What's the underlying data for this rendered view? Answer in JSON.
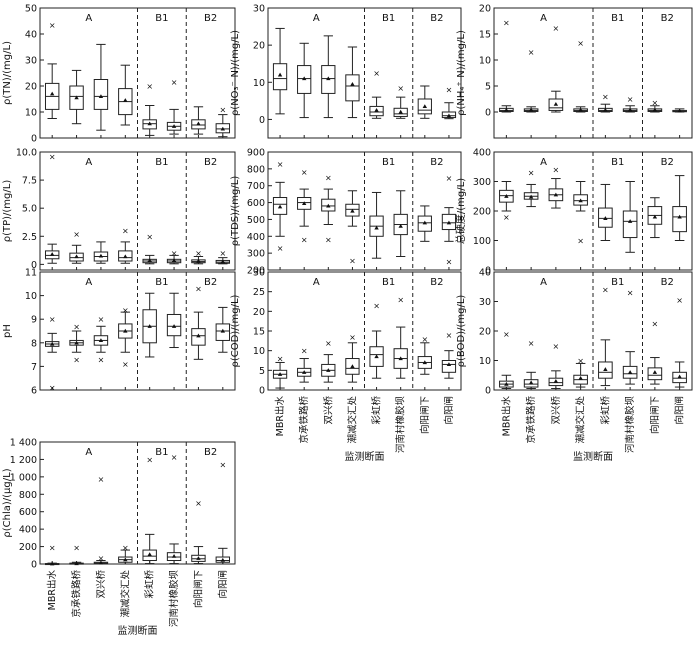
{
  "chart_data": [
    {
      "id": "tn",
      "type": "box",
      "ylabel": "ρ(TN)/(mg/L)",
      "ylim": [
        0,
        50
      ],
      "yticks": [
        0,
        10,
        20,
        30,
        40,
        50
      ],
      "group_labels": [
        "A",
        "B1",
        "B2"
      ],
      "boxes": [
        {
          "min": 7.5,
          "q1": 11,
          "median": 16,
          "q3": 21,
          "max": 28.5,
          "mean": 17,
          "outliers": [
            43.5
          ]
        },
        {
          "min": 5.5,
          "q1": 11,
          "median": 16,
          "q3": 20,
          "max": 26,
          "mean": 15.5,
          "outliers": []
        },
        {
          "min": 3,
          "q1": 11,
          "median": 16,
          "q3": 22.5,
          "max": 36,
          "mean": 16,
          "outliers": []
        },
        {
          "min": 5,
          "q1": 9,
          "median": 14,
          "q3": 19,
          "max": 28,
          "mean": 14.5,
          "outliers": []
        },
        {
          "min": 1,
          "q1": 3.5,
          "median": 5.5,
          "q3": 7,
          "max": 12.5,
          "mean": 5.5,
          "outliers": [
            20
          ]
        },
        {
          "min": 1.5,
          "q1": 3,
          "median": 4.5,
          "q3": 6,
          "max": 11,
          "mean": 4.5,
          "outliers": [
            21.5
          ]
        },
        {
          "min": 1.5,
          "q1": 3.5,
          "median": 5,
          "q3": 7,
          "max": 12,
          "mean": 5.5,
          "outliers": []
        },
        {
          "min": 0.5,
          "q1": 2,
          "median": 3.5,
          "q3": 5.5,
          "max": 9,
          "mean": 3.5,
          "outliers": [
            11
          ]
        }
      ]
    },
    {
      "id": "no3",
      "type": "box",
      "ylabel": "ρ(NO₃⁻-N)/(mg/L)",
      "ylim": [
        -5,
        30
      ],
      "yticks": [
        0,
        10,
        20,
        30
      ],
      "group_labels": [
        "A",
        "B1",
        "B2"
      ],
      "boxes": [
        {
          "min": 1.5,
          "q1": 8,
          "median": 11,
          "q3": 15,
          "max": 24.5,
          "mean": 12,
          "outliers": []
        },
        {
          "min": 0.5,
          "q1": 7,
          "median": 11,
          "q3": 14.5,
          "max": 20.5,
          "mean": 11,
          "outliers": []
        },
        {
          "min": 0.5,
          "q1": 7,
          "median": 11,
          "q3": 14.5,
          "max": 22.5,
          "mean": 11,
          "outliers": []
        },
        {
          "min": 0.5,
          "q1": 5,
          "median": 9,
          "q3": 12,
          "max": 19.5,
          "mean": 9.5,
          "outliers": []
        },
        {
          "min": 0.3,
          "q1": 1,
          "median": 2,
          "q3": 3.5,
          "max": 6,
          "mean": 2.5,
          "outliers": [
            12.5
          ]
        },
        {
          "min": 0.3,
          "q1": 0.8,
          "median": 1.5,
          "q3": 3,
          "max": 6,
          "mean": 2,
          "outliers": [
            8.5
          ]
        },
        {
          "min": 0.3,
          "q1": 1.5,
          "median": 2.5,
          "q3": 5.5,
          "max": 9,
          "mean": 3.5,
          "outliers": []
        },
        {
          "min": 0.2,
          "q1": 0.5,
          "median": 1,
          "q3": 2,
          "max": 4.5,
          "mean": 1,
          "outliers": [
            8
          ]
        }
      ]
    },
    {
      "id": "nh4",
      "type": "box",
      "ylabel": "ρ(NH₄⁺-N)/(mg/L)",
      "ylim": [
        -5,
        20
      ],
      "yticks": [
        0,
        5,
        10,
        15,
        20
      ],
      "group_labels": [
        "A",
        "B1",
        "B2"
      ],
      "boxes": [
        {
          "min": 0,
          "q1": 0.1,
          "median": 0.3,
          "q3": 0.7,
          "max": 1.2,
          "mean": 0.4,
          "outliers": [
            17.2
          ]
        },
        {
          "min": 0,
          "q1": 0.1,
          "median": 0.3,
          "q3": 0.6,
          "max": 1,
          "mean": 0.4,
          "outliers": [
            11.5
          ]
        },
        {
          "min": 0,
          "q1": 0.3,
          "median": 0.8,
          "q3": 2.5,
          "max": 4,
          "mean": 1.5,
          "outliers": [
            16.2
          ]
        },
        {
          "min": 0,
          "q1": 0.1,
          "median": 0.3,
          "q3": 0.6,
          "max": 1,
          "mean": 0.4,
          "outliers": [
            13.3
          ]
        },
        {
          "min": 0,
          "q1": 0.1,
          "median": 0.3,
          "q3": 0.7,
          "max": 1.5,
          "mean": 0.4,
          "outliers": [
            3
          ]
        },
        {
          "min": 0,
          "q1": 0.1,
          "median": 0.3,
          "q3": 0.6,
          "max": 1.2,
          "mean": 0.4,
          "outliers": [
            2.5
          ]
        },
        {
          "min": 0,
          "q1": 0.1,
          "median": 0.3,
          "q3": 0.6,
          "max": 1.2,
          "mean": 0.4,
          "outliers": [
            1.8
          ]
        },
        {
          "min": 0,
          "q1": 0.05,
          "median": 0.1,
          "q3": 0.3,
          "max": 0.6,
          "mean": 0.2,
          "outliers": []
        }
      ]
    },
    {
      "id": "tp",
      "type": "box",
      "ylabel": "ρ(TP)/(mg/L)",
      "ylim": [
        -0.5,
        10
      ],
      "yticks": [
        0,
        2.5,
        5.0,
        7.5,
        10.0
      ],
      "ytick_labels": [
        "0",
        "2.5",
        "5.0",
        "7.5",
        "10.0"
      ],
      "group_labels": [
        "A",
        "B1",
        "B2"
      ],
      "boxes": [
        {
          "min": 0.1,
          "q1": 0.5,
          "median": 0.8,
          "q3": 1.2,
          "max": 1.8,
          "mean": 0.9,
          "outliers": [
            9.6
          ]
        },
        {
          "min": 0.1,
          "q1": 0.3,
          "median": 0.6,
          "q3": 1.0,
          "max": 1.7,
          "mean": 0.7,
          "outliers": [
            2.7
          ]
        },
        {
          "min": 0.1,
          "q1": 0.3,
          "median": 0.7,
          "q3": 1.1,
          "max": 2,
          "mean": 0.75,
          "outliers": []
        },
        {
          "min": 0.1,
          "q1": 0.3,
          "median": 0.6,
          "q3": 1.2,
          "max": 2,
          "mean": 0.7,
          "outliers": [
            3
          ]
        },
        {
          "min": 0.05,
          "q1": 0.15,
          "median": 0.3,
          "q3": 0.45,
          "max": 0.8,
          "mean": 0.35,
          "outliers": [
            2.5
          ]
        },
        {
          "min": 0.05,
          "q1": 0.15,
          "median": 0.3,
          "q3": 0.45,
          "max": 0.8,
          "mean": 0.35,
          "outliers": [
            1
          ]
        },
        {
          "min": 0.05,
          "q1": 0.15,
          "median": 0.25,
          "q3": 0.4,
          "max": 0.7,
          "mean": 0.3,
          "outliers": [
            1
          ]
        },
        {
          "min": 0.05,
          "q1": 0.1,
          "median": 0.2,
          "q3": 0.35,
          "max": 0.6,
          "mean": 0.25,
          "outliers": [
            1
          ]
        }
      ]
    },
    {
      "id": "tds",
      "type": "box",
      "ylabel": "ρ(TDS)/(mg/L)",
      "ylim": [
        200,
        900
      ],
      "yticks": [
        200,
        300,
        400,
        500,
        600,
        700,
        800,
        900
      ],
      "group_labels": [
        "B1",
        "B2"
      ],
      "boxes": [
        {
          "min": 400,
          "q1": 530,
          "median": 590,
          "q3": 630,
          "max": 720,
          "mean": 575,
          "outliers": [
            830,
            330
          ]
        },
        {
          "min": 460,
          "q1": 560,
          "median": 600,
          "q3": 630,
          "max": 680,
          "mean": 595,
          "outliers": [
            780,
            380
          ]
        },
        {
          "min": 470,
          "q1": 550,
          "median": 580,
          "q3": 620,
          "max": 680,
          "mean": 580,
          "outliers": [
            750,
            380
          ]
        },
        {
          "min": 460,
          "q1": 520,
          "median": 560,
          "q3": 590,
          "max": 670,
          "mean": 550,
          "outliers": [
            255
          ]
        },
        {
          "min": 270,
          "q1": 400,
          "median": 460,
          "q3": 520,
          "max": 660,
          "mean": 450,
          "outliers": []
        },
        {
          "min": 280,
          "q1": 410,
          "median": 470,
          "q3": 530,
          "max": 670,
          "mean": 460,
          "outliers": []
        },
        {
          "min": 370,
          "q1": 430,
          "median": 480,
          "q3": 520,
          "max": 580,
          "mean": 480,
          "outliers": []
        },
        {
          "min": 370,
          "q1": 440,
          "median": 480,
          "q3": 530,
          "max": 570,
          "mean": 480,
          "outliers": [
            745,
            250
          ]
        }
      ]
    },
    {
      "id": "hardness",
      "type": "box",
      "ylabel": "总硬度/(mg/L)",
      "ylim": [
        0,
        400
      ],
      "yticks": [
        0,
        100,
        200,
        300,
        400
      ],
      "group_labels": [
        "A",
        "B1",
        "B2"
      ],
      "boxes": [
        {
          "min": 200,
          "q1": 230,
          "median": 252,
          "q3": 270,
          "max": 300,
          "mean": 250,
          "outliers": [
            180
          ]
        },
        {
          "min": 215,
          "q1": 240,
          "median": 250,
          "q3": 262,
          "max": 290,
          "mean": 248,
          "outliers": [
            330
          ]
        },
        {
          "min": 210,
          "q1": 235,
          "median": 255,
          "q3": 275,
          "max": 310,
          "mean": 255,
          "outliers": [
            340
          ]
        },
        {
          "min": 200,
          "q1": 220,
          "median": 235,
          "q3": 255,
          "max": 300,
          "mean": 235,
          "outliers": [
            100
          ]
        },
        {
          "min": 100,
          "q1": 145,
          "median": 175,
          "q3": 210,
          "max": 290,
          "mean": 175,
          "outliers": []
        },
        {
          "min": 60,
          "q1": 110,
          "median": 165,
          "q3": 200,
          "max": 300,
          "mean": 165,
          "outliers": []
        },
        {
          "min": 110,
          "q1": 155,
          "median": 185,
          "q3": 215,
          "max": 245,
          "mean": 180,
          "outliers": []
        },
        {
          "min": 100,
          "q1": 130,
          "median": 180,
          "q3": 215,
          "max": 320,
          "mean": 180,
          "outliers": []
        }
      ]
    },
    {
      "id": "ph",
      "type": "box",
      "ylabel": "pH",
      "ylim": [
        6,
        11
      ],
      "yticks": [
        6,
        7,
        8,
        9,
        10,
        11
      ],
      "group_labels": [
        "A",
        "B1",
        "B2"
      ],
      "boxes": [
        {
          "min": 7.6,
          "q1": 7.85,
          "median": 7.95,
          "q3": 8.05,
          "max": 8.4,
          "mean": 7.95,
          "outliers": [
            9.0,
            6.1
          ]
        },
        {
          "min": 7.6,
          "q1": 7.9,
          "median": 8.0,
          "q3": 8.1,
          "max": 8.5,
          "mean": 8.0,
          "outliers": [
            8.7,
            7.3
          ]
        },
        {
          "min": 7.6,
          "q1": 7.9,
          "median": 8.1,
          "q3": 8.3,
          "max": 8.7,
          "mean": 8.1,
          "outliers": [
            9.0,
            7.3
          ]
        },
        {
          "min": 7.6,
          "q1": 8.2,
          "median": 8.5,
          "q3": 8.8,
          "max": 9.3,
          "mean": 8.5,
          "outliers": [
            9.4,
            7.1
          ]
        },
        {
          "min": 7.4,
          "q1": 8.0,
          "median": 8.7,
          "q3": 9.4,
          "max": 10.1,
          "mean": 8.7,
          "outliers": []
        },
        {
          "min": 7.8,
          "q1": 8.3,
          "median": 8.7,
          "q3": 9.2,
          "max": 10.1,
          "mean": 8.7,
          "outliers": []
        },
        {
          "min": 7.3,
          "q1": 7.9,
          "median": 8.3,
          "q3": 8.6,
          "max": 9.3,
          "mean": 8.3,
          "outliers": [
            10.3
          ]
        },
        {
          "min": 7.6,
          "q1": 8.1,
          "median": 8.5,
          "q3": 8.8,
          "max": 9.5,
          "mean": 8.5,
          "outliers": []
        }
      ]
    },
    {
      "id": "cod",
      "type": "box",
      "ylabel": "ρ(COD)/(mg/L)",
      "ylim": [
        0,
        30
      ],
      "yticks": [
        0,
        5,
        10,
        15,
        20,
        25,
        30
      ],
      "group_labels": [
        "A",
        "B1",
        "B2"
      ],
      "boxes": [
        {
          "min": 0.5,
          "q1": 3,
          "median": 4,
          "q3": 5,
          "max": 7,
          "mean": 4,
          "outliers": [
            8
          ]
        },
        {
          "min": 2,
          "q1": 3.5,
          "median": 4.5,
          "q3": 5.5,
          "max": 8,
          "mean": 4.5,
          "outliers": [
            10
          ]
        },
        {
          "min": 2,
          "q1": 3.5,
          "median": 5,
          "q3": 6.5,
          "max": 9,
          "mean": 5,
          "outliers": [
            12
          ]
        },
        {
          "min": 2,
          "q1": 4,
          "median": 5.5,
          "q3": 8,
          "max": 12,
          "mean": 6,
          "outliers": [
            13.5
          ]
        },
        {
          "min": 3,
          "q1": 6,
          "median": 9,
          "q3": 11,
          "max": 15,
          "mean": 8.5,
          "outliers": [
            21.5
          ]
        },
        {
          "min": 3,
          "q1": 5.5,
          "median": 8,
          "q3": 10.5,
          "max": 16,
          "mean": 8,
          "outliers": [
            23
          ]
        },
        {
          "min": 4,
          "q1": 5.5,
          "median": 7,
          "q3": 8.5,
          "max": 12,
          "mean": 7,
          "outliers": [
            13
          ]
        },
        {
          "min": 3,
          "q1": 4.5,
          "median": 6.5,
          "q3": 7.5,
          "max": 10,
          "mean": 6.5,
          "outliers": [
            14
          ]
        }
      ]
    },
    {
      "id": "bod",
      "type": "box",
      "ylabel": "ρ(BOD)/(mg/L)",
      "ylim": [
        0,
        40
      ],
      "yticks": [
        0,
        10,
        20,
        30,
        40
      ],
      "group_labels": [
        "A",
        "B1",
        "B2"
      ],
      "boxes": [
        {
          "min": 0.5,
          "q1": 1,
          "median": 2,
          "q3": 3,
          "max": 5,
          "mean": 2,
          "outliers": [
            19
          ]
        },
        {
          "min": 0.5,
          "q1": 1,
          "median": 2,
          "q3": 3.5,
          "max": 6,
          "mean": 2.5,
          "outliers": [
            16
          ]
        },
        {
          "min": 0.5,
          "q1": 1.5,
          "median": 2.5,
          "q3": 4,
          "max": 6.5,
          "mean": 3,
          "outliers": [
            15
          ]
        },
        {
          "min": 1,
          "q1": 2,
          "median": 3.5,
          "q3": 5,
          "max": 9,
          "mean": 4,
          "outliers": [
            10
          ]
        },
        {
          "min": 1.5,
          "q1": 4,
          "median": 6,
          "q3": 9.5,
          "max": 17,
          "mean": 7,
          "outliers": [
            34
          ]
        },
        {
          "min": 2,
          "q1": 4,
          "median": 5.5,
          "q3": 8,
          "max": 13,
          "mean": 6,
          "outliers": [
            33
          ]
        },
        {
          "min": 2,
          "q1": 3.5,
          "median": 5,
          "q3": 7.5,
          "max": 11,
          "mean": 6,
          "outliers": [
            22.5
          ]
        },
        {
          "min": 1,
          "q1": 2.5,
          "median": 4,
          "q3": 6,
          "max": 9.5,
          "mean": 4.5,
          "outliers": [
            30.5
          ]
        }
      ]
    },
    {
      "id": "chla",
      "type": "box",
      "ylabel": "ρ(Chla)/(μg/L)",
      "ylim": [
        0,
        1400
      ],
      "yticks": [
        0,
        200,
        400,
        600,
        800,
        1000,
        1200,
        1400
      ],
      "ytick_labels": [
        "0",
        "200",
        "400",
        "600",
        "800",
        "1 000",
        "1 200",
        "1 400"
      ],
      "group_labels": [
        "A",
        "B1",
        "B2"
      ],
      "boxes": [
        {
          "min": 0,
          "q1": 0,
          "median": 2,
          "q3": 5,
          "max": 10,
          "mean": 3,
          "outliers": [
            190
          ]
        },
        {
          "min": 0,
          "q1": 2,
          "median": 5,
          "q3": 10,
          "max": 20,
          "mean": 6,
          "outliers": [
            190
          ]
        },
        {
          "min": 0,
          "q1": 5,
          "median": 10,
          "q3": 20,
          "max": 40,
          "mean": 12,
          "outliers": [
            975,
            70
          ]
        },
        {
          "min": 0,
          "q1": 20,
          "median": 50,
          "q3": 80,
          "max": 160,
          "mean": 50,
          "outliers": [
            190
          ]
        },
        {
          "min": 5,
          "q1": 40,
          "median": 90,
          "q3": 160,
          "max": 340,
          "mean": 110,
          "outliers": [
            1200
          ]
        },
        {
          "min": 5,
          "q1": 40,
          "median": 80,
          "q3": 130,
          "max": 230,
          "mean": 90,
          "outliers": [
            1230
          ]
        },
        {
          "min": 5,
          "q1": 30,
          "median": 60,
          "q3": 100,
          "max": 200,
          "mean": 65,
          "outliers": [
            700
          ]
        },
        {
          "min": 0,
          "q1": 20,
          "median": 40,
          "q3": 80,
          "max": 180,
          "mean": 45,
          "outliers": [
            1140
          ]
        }
      ]
    }
  ],
  "categories": [
    "MBR出水",
    "京承铁路桥",
    "双兴桥",
    "潮减交汇处",
    "彩虹桥",
    "河南村橡胶坝",
    "向阳闸下",
    "向阳闸"
  ],
  "xlabel": "监测断面"
}
